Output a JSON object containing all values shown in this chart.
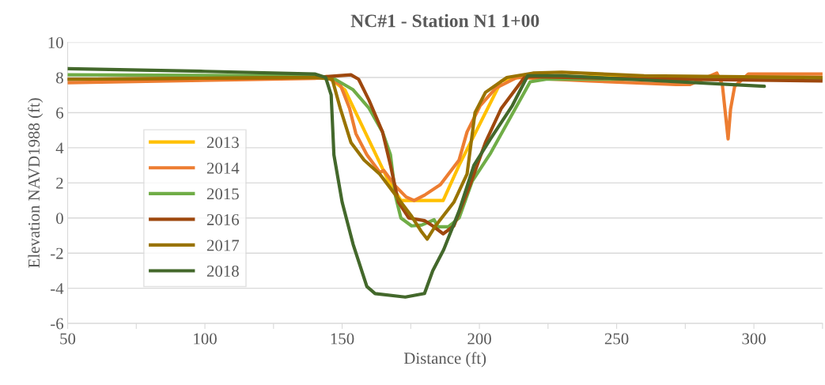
{
  "chart_data": {
    "type": "line",
    "title": "NC#1 - Station N1 1+00",
    "xlabel": "Distance (ft)",
    "ylabel": "Elevation NAVD1988 (ft)",
    "xlim": [
      50,
      325
    ],
    "ylim": [
      -6,
      10
    ],
    "xticks": [
      50,
      {
        "value": 75,
        "label": null
      },
      100,
      {
        "value": 125,
        "label": null
      },
      150,
      {
        "value": 175,
        "label": null
      },
      200,
      {
        "value": 225,
        "label": null
      },
      250,
      {
        "value": 275,
        "label": null
      },
      300,
      {
        "value": 325,
        "label": null
      }
    ],
    "yticks": [
      -6,
      -4,
      -2,
      0,
      2,
      4,
      6,
      8,
      10
    ],
    "grid": "y",
    "legend": "left",
    "marker": "none",
    "line_style": "solid",
    "series": [
      {
        "name": "2013",
        "color": "#ffc000",
        "x": [
          140,
          144.5,
          151,
          166.6,
          171.4,
          186.8,
          192.6,
          208,
          217.6,
          260,
          325
        ],
        "values": [
          8.0,
          8.05,
          7.3,
          2.2,
          1.0,
          1.0,
          3.0,
          7.8,
          8.1,
          8.0,
          8.0
        ]
      },
      {
        "name": "2014",
        "color": "#ed7d31",
        "x": [
          50,
          140,
          144.5,
          149.3,
          152.7,
          155,
          159,
          163.7,
          165.2,
          169.5,
          173.3,
          176.2,
          180,
          185.8,
          192.6,
          195.5,
          200.3,
          206,
          213.7,
          240,
          271.6,
          276.8,
          286.5,
          288.5,
          290.6,
          291.5,
          293,
          298,
          325
        ],
        "values": [
          7.7,
          7.95,
          8.0,
          7.6,
          6.25,
          4.8,
          3.6,
          2.6,
          2.7,
          1.8,
          1.2,
          1.0,
          1.3,
          1.9,
          3.3,
          4.9,
          6.4,
          7.4,
          8.0,
          7.8,
          7.6,
          7.6,
          8.25,
          7.6,
          4.5,
          6.2,
          7.5,
          8.2,
          8.2
        ]
      },
      {
        "name": "2015",
        "color": "#70ad47",
        "x": [
          50,
          140,
          147.4,
          154,
          159.8,
          164.7,
          167.6,
          169.5,
          171.4,
          175.3,
          179,
          183.5,
          184.9,
          188.7,
          192.6,
          197.4,
          204.1,
          213.7,
          218.5,
          224.3,
          325
        ],
        "values": [
          8.15,
          8.1,
          7.9,
          7.3,
          6.25,
          4.9,
          3.6,
          1.2,
          0.0,
          -0.45,
          -0.4,
          -0.1,
          -0.5,
          -0.5,
          0.0,
          2.1,
          3.7,
          6.4,
          7.75,
          7.9,
          7.9
        ]
      },
      {
        "name": "2016",
        "color": "#9e480e",
        "x": [
          50,
          140,
          144.5,
          153.2,
          156,
          159.8,
          164.7,
          167.6,
          170.5,
          174.3,
          180,
          183,
          186.8,
          190.7,
          196.4,
          202.2,
          208,
          216.6,
          250,
          325
        ],
        "values": [
          7.9,
          8.0,
          8.05,
          8.15,
          7.9,
          6.7,
          4.9,
          3.0,
          0.9,
          0.0,
          -0.15,
          -0.45,
          -0.9,
          -0.45,
          1.8,
          4.3,
          6.25,
          8.05,
          7.95,
          7.8
        ]
      },
      {
        "name": "2017",
        "color": "#997300",
        "x": [
          50,
          140,
          146.4,
          149.3,
          153.2,
          158,
          163.7,
          169.5,
          175.3,
          179,
          181,
          184,
          190.7,
          195.5,
          198.4,
          202.2,
          210,
          219.5,
          230,
          260,
          325
        ],
        "values": [
          7.9,
          8.0,
          7.9,
          6.25,
          4.3,
          3.3,
          2.5,
          1.3,
          0.1,
          -0.8,
          -1.2,
          -0.45,
          0.9,
          2.5,
          6.0,
          7.15,
          8.0,
          8.25,
          8.3,
          8.1,
          8.0
        ]
      },
      {
        "name": "2018",
        "color": "#43682b",
        "x": [
          50,
          100,
          140,
          144,
          146,
          147,
          150,
          154,
          159,
          162,
          173,
          180,
          183,
          187,
          192.6,
          198,
          204,
          212,
          217.6,
          230,
          303.8
        ],
        "values": [
          8.5,
          8.35,
          8.2,
          8.0,
          7.0,
          3.6,
          0.9,
          -1.5,
          -3.9,
          -4.3,
          -4.5,
          -4.3,
          -3.0,
          -1.8,
          0.4,
          3.0,
          4.5,
          6.4,
          8.1,
          8.1,
          7.5
        ]
      }
    ]
  }
}
